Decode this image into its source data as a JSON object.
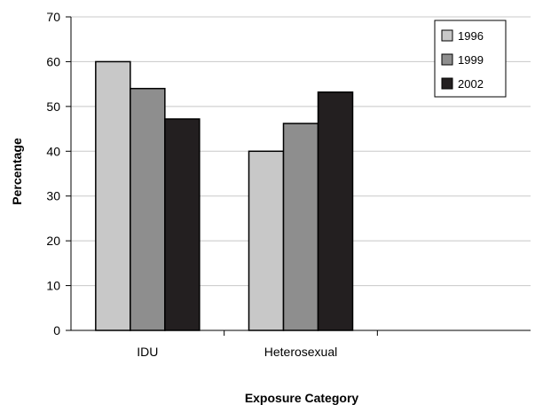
{
  "chart_data": {
    "type": "bar",
    "title": "",
    "xlabel": "Exposure Category",
    "ylabel": "Percentage",
    "ylim": [
      0,
      70
    ],
    "yticks": [
      0,
      10,
      20,
      30,
      40,
      50,
      60,
      70
    ],
    "categories": [
      "IDU",
      "Heterosexual",
      ""
    ],
    "series": [
      {
        "name": "1996",
        "values": [
          60,
          40,
          null
        ],
        "color": "#c8c8c8"
      },
      {
        "name": "1999",
        "values": [
          54,
          46.2,
          null
        ],
        "color": "#8e8e8e"
      },
      {
        "name": "2002",
        "values": [
          47.2,
          53.2,
          null
        ],
        "color": "#231f20"
      }
    ],
    "grid": true,
    "legend_position": "top-right"
  }
}
